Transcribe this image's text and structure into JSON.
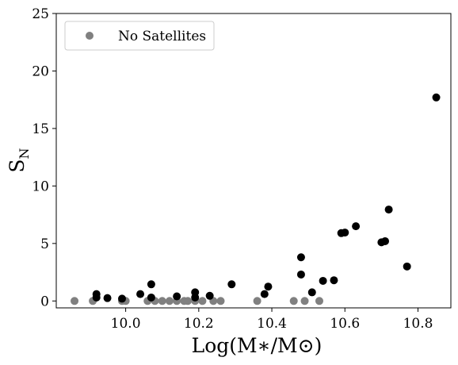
{
  "chart_data": {
    "type": "scatter",
    "title": "",
    "xlabel": "Log(M∗/M⊙)",
    "ylabel": "S",
    "ylabel_subscript": "N",
    "xlim": [
      9.81,
      10.89
    ],
    "ylim": [
      -0.6,
      25
    ],
    "xticks": [
      10.0,
      10.2,
      10.4,
      10.6,
      10.8
    ],
    "xtick_labels": [
      "10.0",
      "10.2",
      "10.4",
      "10.6",
      "10.8"
    ],
    "yticks": [
      0,
      5,
      10,
      15,
      20,
      25
    ],
    "ytick_labels": [
      "0",
      "5",
      "10",
      "15",
      "20",
      "25"
    ],
    "grid": false,
    "legend_position": "top-left",
    "series": [
      {
        "name": "No Satellites",
        "color": "#808080",
        "points": [
          [
            9.86,
            0
          ],
          [
            9.91,
            0
          ],
          [
            9.99,
            0
          ],
          [
            10.0,
            0
          ],
          [
            10.06,
            0
          ],
          [
            10.08,
            0
          ],
          [
            10.1,
            0
          ],
          [
            10.12,
            0
          ],
          [
            10.14,
            0
          ],
          [
            10.16,
            0
          ],
          [
            10.17,
            0
          ],
          [
            10.19,
            0
          ],
          [
            10.21,
            0
          ],
          [
            10.24,
            0
          ],
          [
            10.26,
            0
          ],
          [
            10.36,
            0
          ],
          [
            10.46,
            0
          ],
          [
            10.49,
            0
          ],
          [
            10.53,
            0
          ]
        ]
      },
      {
        "name": "",
        "color": "#000000",
        "points": [
          [
            9.92,
            0.6
          ],
          [
            9.92,
            0.3
          ],
          [
            9.95,
            0.25
          ],
          [
            9.99,
            0.2
          ],
          [
            10.04,
            0.6
          ],
          [
            10.07,
            1.45
          ],
          [
            10.07,
            0.3
          ],
          [
            10.14,
            0.4
          ],
          [
            10.19,
            0.75
          ],
          [
            10.19,
            0.3
          ],
          [
            10.23,
            0.45
          ],
          [
            10.29,
            1.45
          ],
          [
            10.38,
            0.6
          ],
          [
            10.39,
            1.25
          ],
          [
            10.48,
            3.8
          ],
          [
            10.48,
            2.3
          ],
          [
            10.51,
            0.75
          ],
          [
            10.54,
            1.75
          ],
          [
            10.57,
            1.8
          ],
          [
            10.59,
            5.9
          ],
          [
            10.6,
            5.95
          ],
          [
            10.63,
            6.5
          ],
          [
            10.7,
            5.1
          ],
          [
            10.71,
            5.2
          ],
          [
            10.72,
            7.95
          ],
          [
            10.77,
            3.0
          ],
          [
            10.85,
            17.7
          ]
        ]
      }
    ]
  }
}
